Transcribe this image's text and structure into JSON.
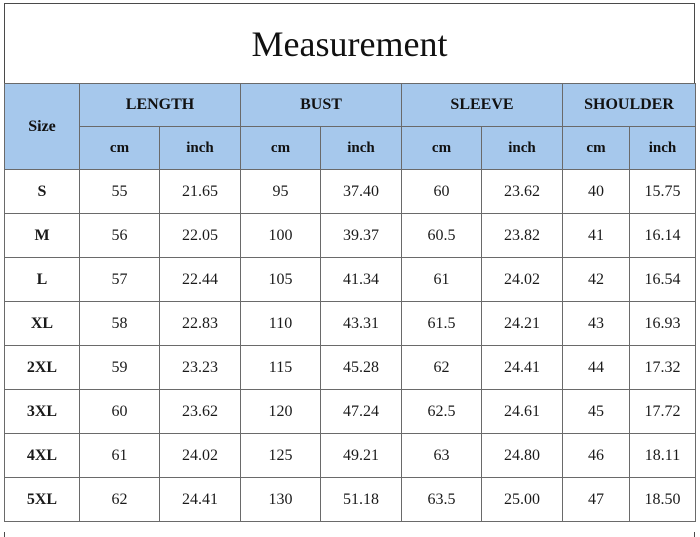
{
  "title": "Measurement",
  "header": {
    "size_label": "Size",
    "groups": [
      "LENGTH",
      "BUST",
      "SLEEVE",
      "SHOULDER"
    ],
    "units": [
      "cm",
      "inch",
      "cm",
      "inch",
      "cm",
      "inch",
      "cm",
      "inch"
    ]
  },
  "rows": [
    {
      "size": "S",
      "cells": [
        "55",
        "21.65",
        "95",
        "37.40",
        "60",
        "23.62",
        "40",
        "15.75"
      ]
    },
    {
      "size": "M",
      "cells": [
        "56",
        "22.05",
        "100",
        "39.37",
        "60.5",
        "23.82",
        "41",
        "16.14"
      ]
    },
    {
      "size": "L",
      "cells": [
        "57",
        "22.44",
        "105",
        "41.34",
        "61",
        "24.02",
        "42",
        "16.54"
      ]
    },
    {
      "size": "XL",
      "cells": [
        "58",
        "22.83",
        "110",
        "43.31",
        "61.5",
        "24.21",
        "43",
        "16.93"
      ]
    },
    {
      "size": "2XL",
      "cells": [
        "59",
        "23.23",
        "115",
        "45.28",
        "62",
        "24.41",
        "44",
        "17.32"
      ]
    },
    {
      "size": "3XL",
      "cells": [
        "60",
        "23.62",
        "120",
        "47.24",
        "62.5",
        "24.61",
        "45",
        "17.72"
      ]
    },
    {
      "size": "4XL",
      "cells": [
        "61",
        "24.02",
        "125",
        "49.21",
        "63",
        "24.80",
        "46",
        "18.11"
      ]
    },
    {
      "size": "5XL",
      "cells": [
        "62",
        "24.41",
        "130",
        "51.18",
        "63.5",
        "25.00",
        "47",
        "18.50"
      ]
    }
  ],
  "colors": {
    "header_fill": "#a6c8ec",
    "border": "#6a6a6a",
    "text": "#1a1a1a"
  }
}
